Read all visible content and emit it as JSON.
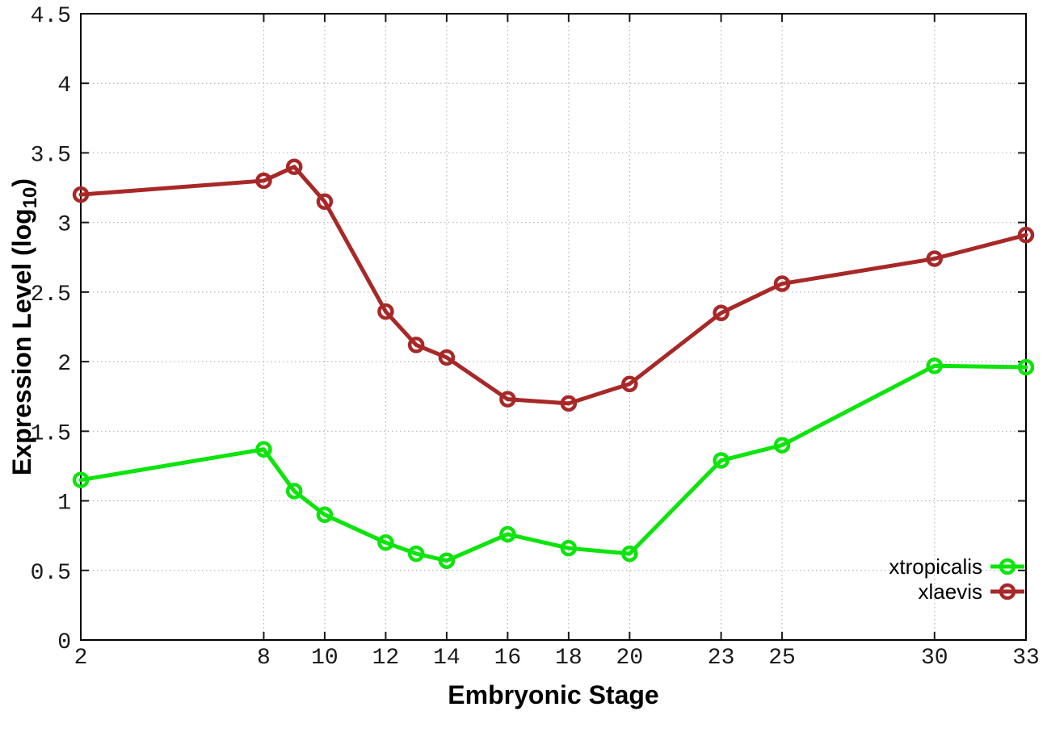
{
  "figure": {
    "background": "#ffffff",
    "plot_border_color": "#000000",
    "grid_color": "#b6b6b6",
    "tick_color": "#1a1a1a"
  },
  "chart_data": {
    "type": "line",
    "title": "",
    "xlabel": "Embryonic Stage",
    "ylabel": "Expression Level (log10)",
    "ylabel_prefix": "Expression Level (log",
    "ylabel_subscript": "10",
    "ylabel_suffix": ")",
    "xlim": [
      2,
      33
    ],
    "ylim": [
      0,
      4.5
    ],
    "grid": true,
    "legend_position": "inside-bottom-right",
    "x": [
      2,
      8,
      9,
      10,
      12,
      13,
      14,
      16,
      18,
      20,
      23,
      25,
      30,
      33
    ],
    "xticks": [
      2,
      8,
      10,
      12,
      14,
      16,
      18,
      20,
      23,
      25,
      30,
      33
    ],
    "xtick_labels": [
      "2",
      "8",
      "10",
      "12",
      "14",
      "16",
      "18",
      "20",
      "23",
      "25",
      "30",
      "33"
    ],
    "yticks": [
      0,
      0.5,
      1,
      1.5,
      2,
      2.5,
      3,
      3.5,
      4,
      4.5
    ],
    "ytick_labels": [
      "0",
      "0.5",
      "1",
      "1.5",
      "2",
      "2.5",
      "3",
      "3.5",
      "4",
      "4.5"
    ],
    "series": [
      {
        "name": "xtropicalis",
        "color": "#0ce40c",
        "marker": "open-circle",
        "values": [
          1.15,
          1.37,
          1.07,
          0.9,
          0.7,
          0.62,
          0.57,
          0.76,
          0.66,
          0.62,
          1.29,
          1.4,
          1.97,
          1.96
        ]
      },
      {
        "name": "xlaevis",
        "color": "#a82828",
        "marker": "open-circle",
        "values": [
          3.2,
          3.3,
          3.4,
          3.15,
          2.36,
          2.12,
          2.03,
          1.73,
          1.7,
          1.84,
          2.35,
          2.56,
          2.74,
          2.91
        ]
      }
    ]
  }
}
